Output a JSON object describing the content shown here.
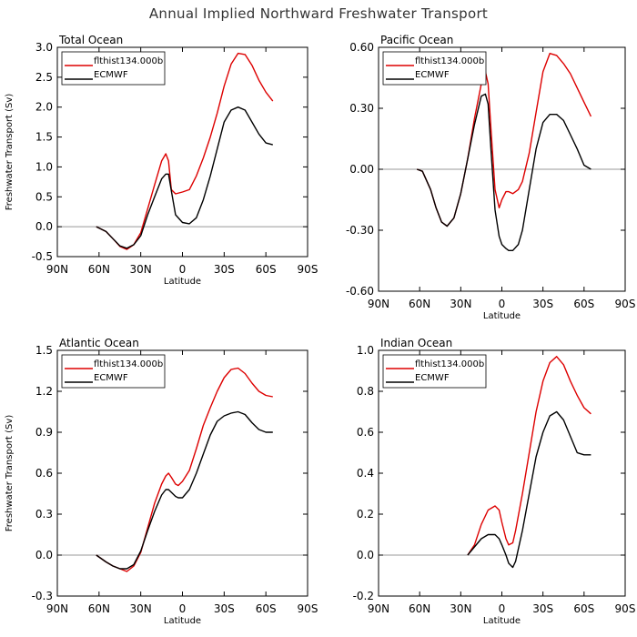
{
  "title": "Annual Implied Northward Freshwater Transport",
  "colors": {
    "model": "#dd0000",
    "obs": "#000000",
    "zero": "#999999",
    "axes": "#000000"
  },
  "chart_data": [
    {
      "type": "line",
      "title": "Total Ocean",
      "xlabel": "Latitude",
      "ylabel": "Freshwater Transport (Sv)",
      "xlim": [
        -90,
        90
      ],
      "xticks": [
        -90,
        -60,
        -30,
        0,
        30,
        60,
        90
      ],
      "xticklabels": [
        "90N",
        "60N",
        "30N",
        "0",
        "30S",
        "60S",
        "90S"
      ],
      "ylim": [
        -0.5,
        3.0
      ],
      "yticks": [
        -0.5,
        0.0,
        0.5,
        1.0,
        1.5,
        2.0,
        2.5,
        3.0
      ],
      "yticklabels": [
        "-0.5",
        "0.0",
        "0.5",
        "1.0",
        "1.5",
        "2.0",
        "2.5",
        "3.0"
      ],
      "legend": "top-left",
      "series": [
        {
          "name": "flthist134.000b",
          "color": "#dd0000",
          "x": [
            -62,
            -55,
            -50,
            -45,
            -40,
            -35,
            -30,
            -25,
            -20,
            -15,
            -12,
            -10,
            -8,
            -5,
            0,
            5,
            10,
            15,
            20,
            25,
            30,
            35,
            40,
            45,
            50,
            55,
            60,
            65
          ],
          "y": [
            0.0,
            -0.08,
            -0.2,
            -0.33,
            -0.38,
            -0.3,
            -0.1,
            0.3,
            0.7,
            1.1,
            1.22,
            1.1,
            0.62,
            0.55,
            0.58,
            0.62,
            0.85,
            1.15,
            1.5,
            1.9,
            2.35,
            2.72,
            2.9,
            2.88,
            2.7,
            2.45,
            2.25,
            2.1
          ]
        },
        {
          "name": "ECMWF",
          "color": "#000000",
          "x": [
            -62,
            -55,
            -50,
            -45,
            -40,
            -35,
            -30,
            -25,
            -20,
            -15,
            -12,
            -10,
            -8,
            -5,
            0,
            5,
            10,
            15,
            20,
            25,
            30,
            35,
            40,
            45,
            50,
            55,
            60,
            65
          ],
          "y": [
            0.0,
            -0.08,
            -0.2,
            -0.32,
            -0.36,
            -0.3,
            -0.15,
            0.2,
            0.5,
            0.8,
            0.88,
            0.88,
            0.6,
            0.2,
            0.07,
            0.05,
            0.15,
            0.45,
            0.85,
            1.3,
            1.75,
            1.95,
            2.0,
            1.95,
            1.75,
            1.55,
            1.4,
            1.37
          ]
        }
      ]
    },
    {
      "type": "line",
      "title": "Pacific Ocean",
      "xlabel": "Latitude",
      "ylabel": "",
      "xlim": [
        -90,
        90
      ],
      "xticks": [
        -90,
        -60,
        -30,
        0,
        30,
        60,
        90
      ],
      "xticklabels": [
        "90N",
        "60N",
        "30N",
        "0",
        "30S",
        "60S",
        "90S"
      ],
      "ylim": [
        -0.6,
        0.6
      ],
      "yticks": [
        -0.6,
        -0.3,
        0.0,
        0.3,
        0.6
      ],
      "yticklabels": [
        "-0.60",
        "-0.30",
        "0.00",
        "0.30",
        "0.60"
      ],
      "legend": "top-left",
      "series": [
        {
          "name": "flthist134.000b",
          "color": "#dd0000",
          "x": [
            -62,
            -58,
            -52,
            -48,
            -44,
            -40,
            -35,
            -30,
            -25,
            -20,
            -15,
            -12,
            -10,
            -8,
            -5,
            -2,
            0,
            3,
            5,
            8,
            12,
            15,
            20,
            25,
            30,
            35,
            40,
            45,
            50,
            55,
            60,
            65
          ],
          "y": [
            0.0,
            -0.01,
            -0.1,
            -0.19,
            -0.26,
            -0.28,
            -0.24,
            -0.12,
            0.05,
            0.25,
            0.42,
            0.48,
            0.42,
            0.2,
            -0.1,
            -0.19,
            -0.15,
            -0.11,
            -0.11,
            -0.12,
            -0.1,
            -0.06,
            0.08,
            0.28,
            0.48,
            0.57,
            0.56,
            0.52,
            0.47,
            0.4,
            0.33,
            0.26
          ]
        },
        {
          "name": "ECMWF",
          "color": "#000000",
          "x": [
            -62,
            -58,
            -52,
            -48,
            -44,
            -40,
            -35,
            -30,
            -25,
            -20,
            -15,
            -12,
            -10,
            -8,
            -5,
            -2,
            0,
            3,
            5,
            8,
            12,
            15,
            20,
            25,
            30,
            35,
            40,
            45,
            50,
            55,
            60,
            65
          ],
          "y": [
            0.0,
            -0.01,
            -0.1,
            -0.19,
            -0.26,
            -0.28,
            -0.24,
            -0.12,
            0.05,
            0.22,
            0.36,
            0.37,
            0.32,
            0.1,
            -0.2,
            -0.33,
            -0.37,
            -0.39,
            -0.4,
            -0.4,
            -0.37,
            -0.3,
            -0.1,
            0.1,
            0.23,
            0.27,
            0.27,
            0.24,
            0.17,
            0.1,
            0.02,
            0.0
          ]
        }
      ]
    },
    {
      "type": "line",
      "title": "Atlantic Ocean",
      "xlabel": "Latitude",
      "ylabel": "Freshwater Transport (Sv)",
      "xlim": [
        -90,
        90
      ],
      "xticks": [
        -90,
        -60,
        -30,
        0,
        30,
        60,
        90
      ],
      "xticklabels": [
        "90N",
        "60N",
        "30N",
        "0",
        "30S",
        "60S",
        "90S"
      ],
      "ylim": [
        -0.3,
        1.5
      ],
      "yticks": [
        -0.3,
        0.0,
        0.3,
        0.6,
        0.9,
        1.2,
        1.5
      ],
      "yticklabels": [
        "-0.3",
        "0.0",
        "0.3",
        "0.6",
        "0.9",
        "1.2",
        "1.5"
      ],
      "legend": "top-left",
      "series": [
        {
          "name": "flthist134.000b",
          "color": "#dd0000",
          "x": [
            -62,
            -55,
            -50,
            -45,
            -40,
            -35,
            -30,
            -25,
            -20,
            -15,
            -12,
            -10,
            -8,
            -5,
            -3,
            0,
            5,
            10,
            15,
            20,
            25,
            30,
            35,
            40,
            45,
            50,
            55,
            60,
            65
          ],
          "y": [
            0.0,
            -0.05,
            -0.08,
            -0.1,
            -0.12,
            -0.08,
            0.02,
            0.2,
            0.38,
            0.52,
            0.58,
            0.6,
            0.57,
            0.52,
            0.51,
            0.54,
            0.62,
            0.78,
            0.95,
            1.08,
            1.2,
            1.3,
            1.36,
            1.37,
            1.33,
            1.26,
            1.2,
            1.17,
            1.16
          ]
        },
        {
          "name": "ECMWF",
          "color": "#000000",
          "x": [
            -62,
            -55,
            -50,
            -45,
            -40,
            -35,
            -30,
            -25,
            -20,
            -15,
            -12,
            -10,
            -8,
            -5,
            -3,
            0,
            5,
            10,
            15,
            20,
            25,
            30,
            35,
            40,
            45,
            50,
            55,
            60,
            65
          ],
          "y": [
            0.0,
            -0.05,
            -0.08,
            -0.1,
            -0.1,
            -0.07,
            0.03,
            0.18,
            0.32,
            0.44,
            0.48,
            0.48,
            0.46,
            0.43,
            0.42,
            0.42,
            0.48,
            0.6,
            0.74,
            0.88,
            0.98,
            1.02,
            1.04,
            1.05,
            1.03,
            0.97,
            0.92,
            0.9,
            0.9
          ]
        }
      ]
    },
    {
      "type": "line",
      "title": "Indian Ocean",
      "xlabel": "Latitude",
      "ylabel": "",
      "xlim": [
        -90,
        90
      ],
      "xticks": [
        -90,
        -60,
        -30,
        0,
        30,
        60,
        90
      ],
      "xticklabels": [
        "90N",
        "60N",
        "30N",
        "0",
        "30S",
        "60S",
        "90S"
      ],
      "ylim": [
        -0.2,
        1.0
      ],
      "yticks": [
        -0.2,
        0.0,
        0.2,
        0.4,
        0.6,
        0.8,
        1.0
      ],
      "yticklabels": [
        "-0.2",
        "0.0",
        "0.2",
        "0.4",
        "0.6",
        "0.8",
        "1.0"
      ],
      "legend": "top-left",
      "series": [
        {
          "name": "flthist134.000b",
          "color": "#dd0000",
          "x": [
            -25,
            -20,
            -15,
            -10,
            -5,
            -2,
            0,
            3,
            5,
            8,
            10,
            15,
            20,
            25,
            30,
            35,
            40,
            45,
            50,
            55,
            60,
            65
          ],
          "y": [
            0.0,
            0.05,
            0.15,
            0.22,
            0.24,
            0.22,
            0.16,
            0.08,
            0.05,
            0.06,
            0.12,
            0.3,
            0.5,
            0.7,
            0.85,
            0.94,
            0.97,
            0.93,
            0.85,
            0.78,
            0.72,
            0.69
          ]
        },
        {
          "name": "ECMWF",
          "color": "#000000",
          "x": [
            -25,
            -20,
            -15,
            -10,
            -5,
            -2,
            0,
            3,
            5,
            8,
            10,
            15,
            20,
            25,
            30,
            35,
            40,
            45,
            50,
            55,
            60,
            65
          ],
          "y": [
            0.0,
            0.04,
            0.08,
            0.1,
            0.1,
            0.08,
            0.05,
            0.0,
            -0.04,
            -0.06,
            -0.03,
            0.12,
            0.3,
            0.48,
            0.6,
            0.68,
            0.7,
            0.66,
            0.58,
            0.5,
            0.49,
            0.49
          ]
        }
      ]
    }
  ]
}
